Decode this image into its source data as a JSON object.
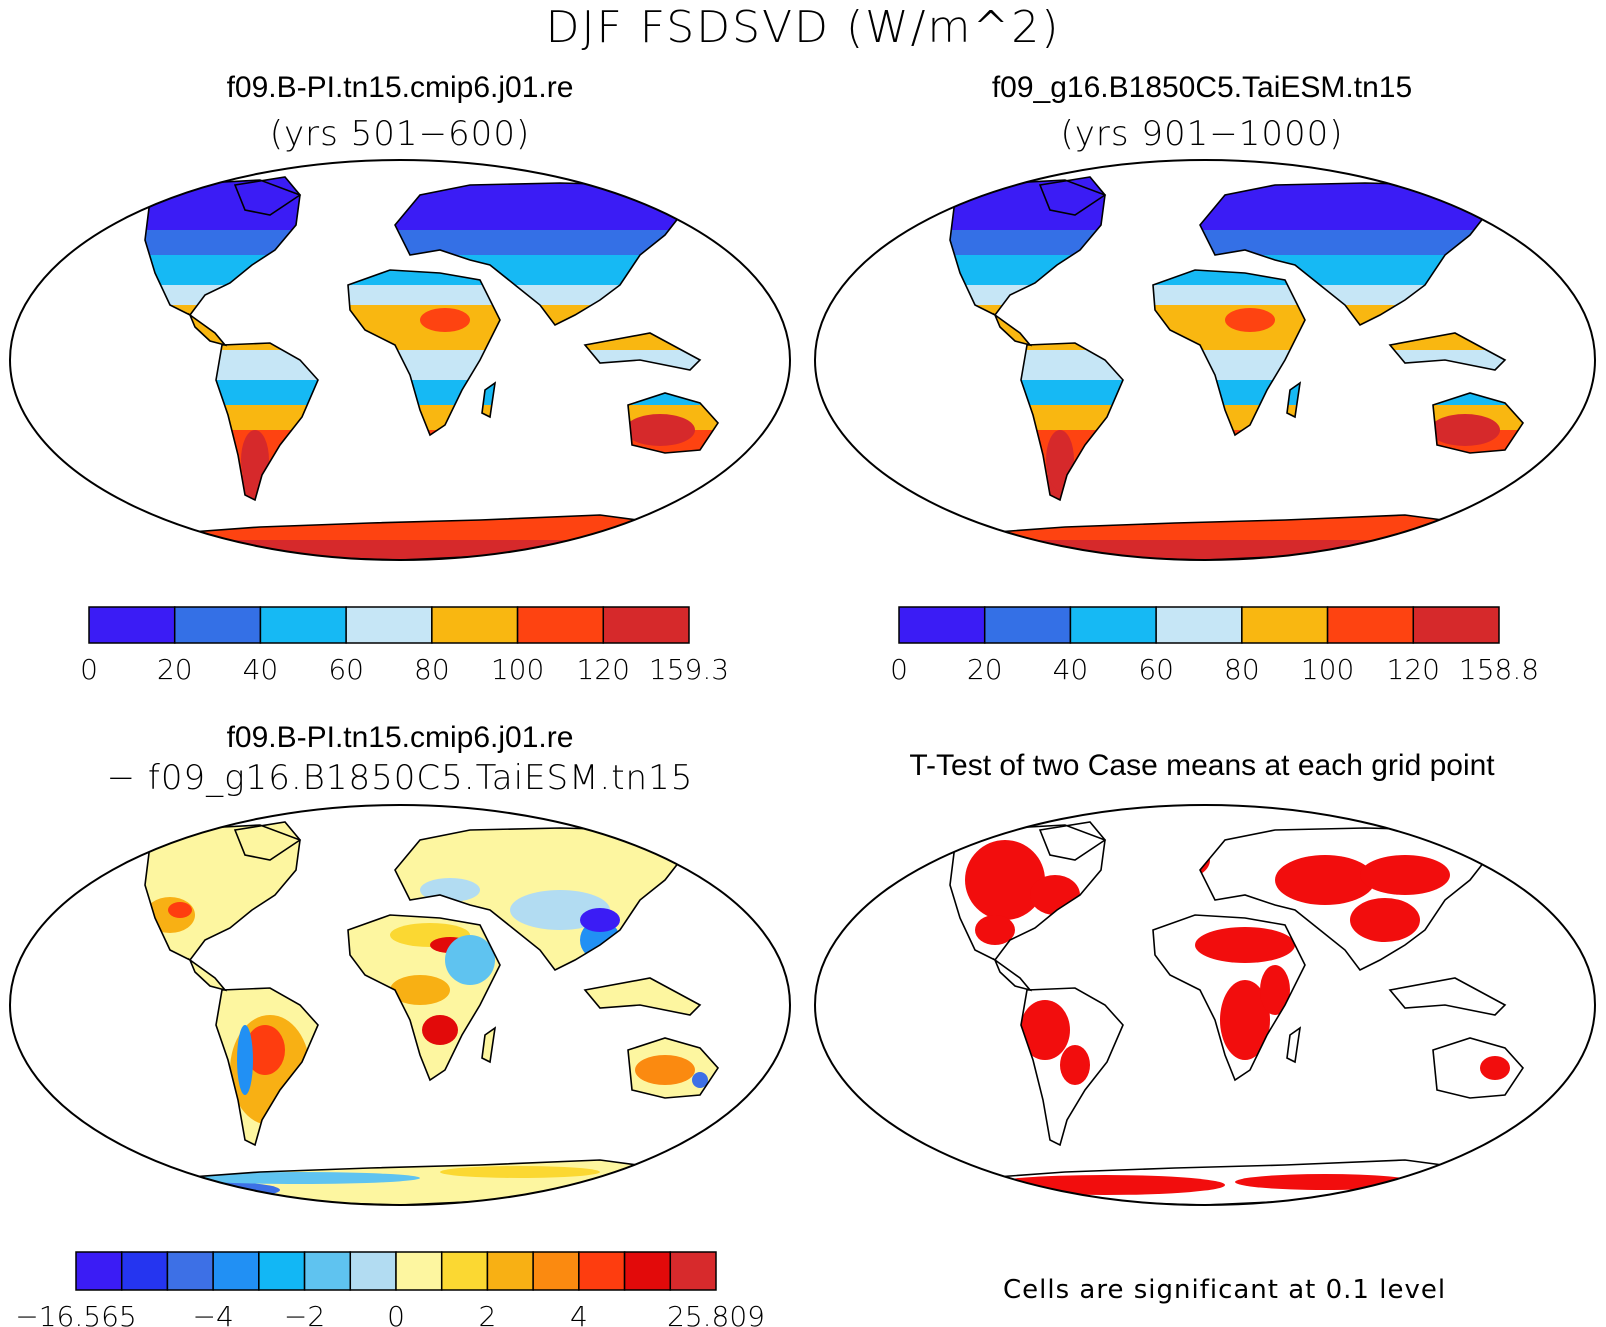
{
  "figure": {
    "title": "DJF FSDSVD (W/m^2)"
  },
  "panels": {
    "case1": {
      "title": "f09.B-PI.tn15.cmip6.j01.re",
      "subtitle": "(yrs 501−600)",
      "colorbar": {
        "colors": [
          "#3b1cf5",
          "#3470e6",
          "#16b9f4",
          "#c6e6f6",
          "#f9b711",
          "#fe4311",
          "#d6292b"
        ],
        "tick_labels": [
          "0",
          "20",
          "40",
          "60",
          "80",
          "100",
          "120",
          "159.3"
        ]
      }
    },
    "case2": {
      "title": "f09_g16.B1850C5.TaiESM.tn15",
      "subtitle": "(yrs 901−1000)",
      "colorbar": {
        "colors": [
          "#3b1cf5",
          "#3470e6",
          "#16b9f4",
          "#c6e6f6",
          "#f9b711",
          "#fe4311",
          "#d6292b"
        ],
        "tick_labels": [
          "0",
          "20",
          "40",
          "60",
          "80",
          "100",
          "120",
          "158.8"
        ]
      }
    },
    "diff": {
      "title": "f09.B-PI.tn15.cmip6.j01.re",
      "subtitle": "− f09_g16.B1850C5.TaiESM.tn15",
      "colorbar": {
        "colors": [
          "#3b1cf5",
          "#2535f0",
          "#3d70e6",
          "#2190f4",
          "#12b7f5",
          "#5fc3f0",
          "#b2dcf2",
          "#fdf6a0",
          "#fbd832",
          "#f8b014",
          "#fb8a10",
          "#fe3d0f",
          "#e20a0a",
          "#d72a2c"
        ],
        "tick_labels": [
          "−16.565",
          "−4",
          "−2",
          "0",
          "2",
          "4",
          "25.809"
        ]
      }
    },
    "ttest": {
      "title": "T-Test of two Case means at each grid point",
      "note": "Cells are significant at 0.1 level",
      "significant_color": "#f20d0d"
    }
  }
}
